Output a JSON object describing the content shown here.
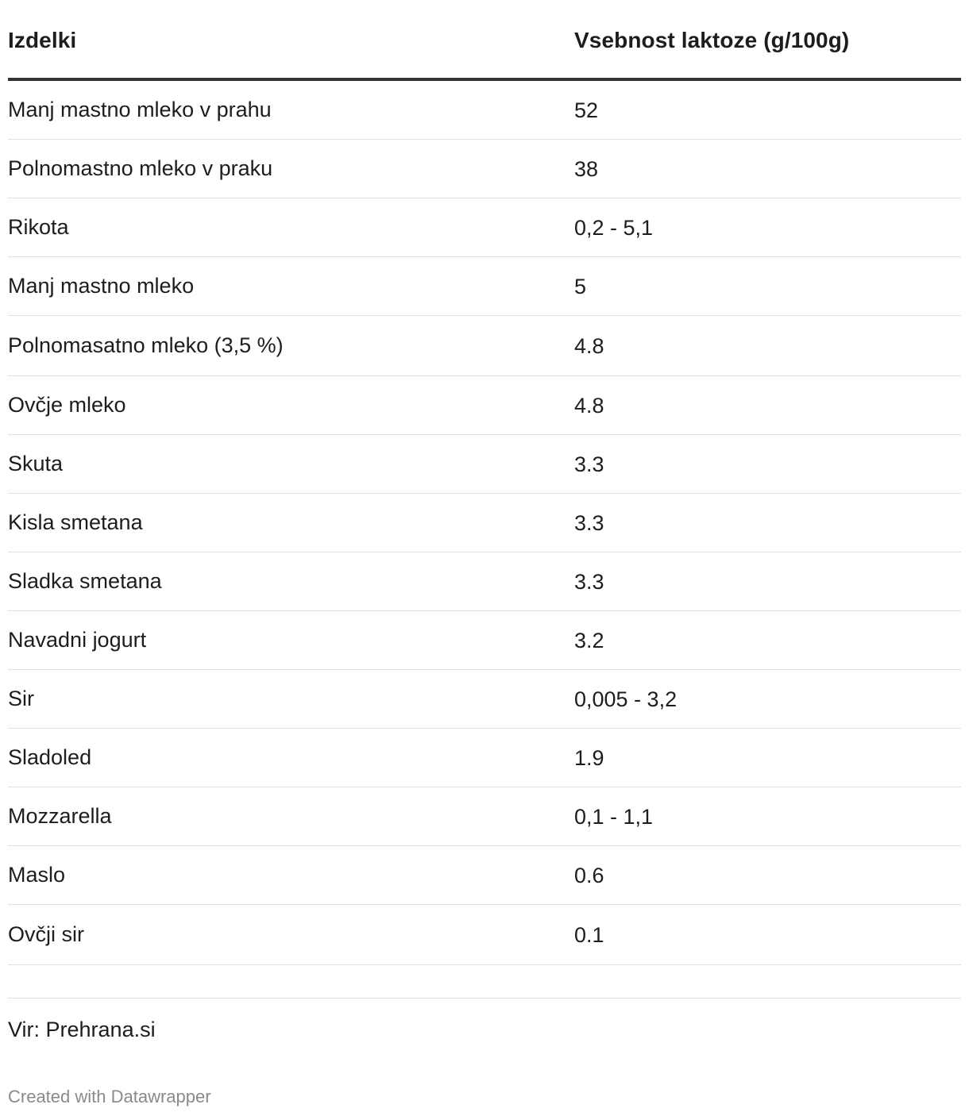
{
  "chart_data": {
    "type": "table",
    "columns": [
      "Izdelki",
      "Vsebnost laktoze (g/100g)"
    ],
    "rows": [
      [
        "Manj mastno mleko v prahu",
        "52"
      ],
      [
        "Polnomastno mleko v praku",
        "38"
      ],
      [
        "Rikota",
        "0,2 - 5,1"
      ],
      [
        "Manj mastno mleko",
        "5"
      ],
      [
        "Polnomasatno mleko (3,5 %)",
        "4.8"
      ],
      [
        "Ovčje mleko",
        "4.8"
      ],
      [
        "Skuta",
        "3.3"
      ],
      [
        "Kisla smetana",
        "3.3"
      ],
      [
        "Sladka smetana",
        "3.3"
      ],
      [
        "Navadni jogurt",
        "3.2"
      ],
      [
        "Sir",
        "0,005 - 3,2"
      ],
      [
        "Sladoled",
        "1.9"
      ],
      [
        "Mozzarella",
        "0,1 - 1,1"
      ],
      [
        "Maslo",
        "0.6"
      ],
      [
        "Ovčji sir",
        "0.1"
      ]
    ]
  },
  "footer": {
    "source": "Vir: Prehrana.si",
    "credit": "Created with Datawrapper"
  }
}
